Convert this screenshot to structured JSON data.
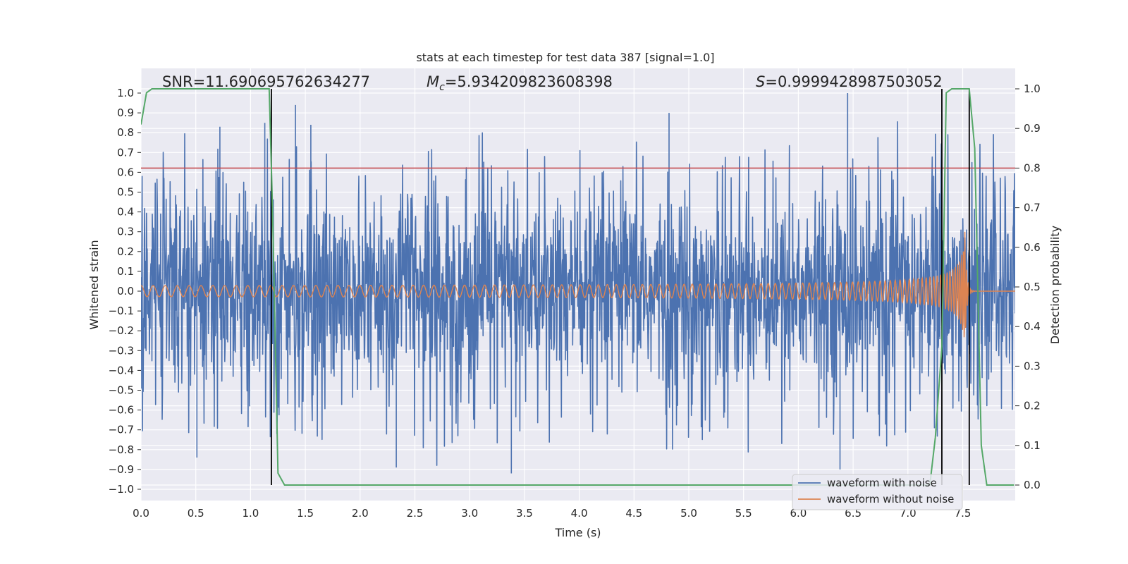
{
  "chart_data": {
    "type": "line",
    "title": "stats at each timestep for test data 387 [signal=1.0]",
    "xlabel": "Time (s)",
    "ylabel": "Whitened strain",
    "y2label": "Detection probability",
    "xlim": [
      0.0,
      8.0
    ],
    "ylim": [
      -1.05,
      1.05
    ],
    "y2lim": [
      -0.05,
      1.05
    ],
    "x_ticks": [
      "0.0",
      "0.5",
      "1.0",
      "1.5",
      "2.0",
      "2.5",
      "3.0",
      "3.5",
      "4.0",
      "4.5",
      "5.0",
      "5.5",
      "6.0",
      "6.5",
      "7.0",
      "7.5"
    ],
    "y_ticks": [
      "1.0",
      "0.9",
      "0.8",
      "0.7",
      "0.6",
      "0.5",
      "0.4",
      "0.3",
      "0.2",
      "0.1",
      "0.0",
      "−0.1",
      "−0.2",
      "−0.3",
      "−0.4",
      "−0.5",
      "−0.6",
      "−0.7",
      "−0.8",
      "−0.9",
      "−1.0"
    ],
    "y2_ticks": [
      "1.0",
      "0.9",
      "0.8",
      "0.7",
      "0.6",
      "0.5",
      "0.4",
      "0.3",
      "0.2",
      "0.1",
      "0.0"
    ],
    "annotations": {
      "snr": "SNR=11.690695762634277",
      "mc_symbol": "M",
      "mc_sub": "c",
      "mc_value": "=5.934209823608398",
      "s_symbol": "S",
      "s_value": "=0.9999428987503052"
    },
    "threshold": {
      "value": 0.8,
      "axis": "y2",
      "color": "#c44e52"
    },
    "vertical_markers": [
      1.19,
      7.31,
      7.56
    ],
    "series": [
      {
        "name": "waveform with noise",
        "color": "#4c72b0",
        "axis": "y",
        "description": "whitened strain, noise dominated, roughly -0.9 to 1.0",
        "peaks": [
          {
            "x": 0.72,
            "y": 0.83
          },
          {
            "x": 1.13,
            "y": 0.85
          },
          {
            "x": 1.41,
            "y": 0.94
          },
          {
            "x": 1.55,
            "y": 0.84
          },
          {
            "x": 4.82,
            "y": 0.9
          },
          {
            "x": 6.45,
            "y": 1.0
          },
          {
            "x": 1.47,
            "y": -0.72
          },
          {
            "x": 3.38,
            "y": -0.92
          },
          {
            "x": 2.33,
            "y": -0.89
          },
          {
            "x": 0.51,
            "y": -0.84
          },
          {
            "x": 6.38,
            "y": -0.9
          }
        ]
      },
      {
        "name": "waveform without noise",
        "color": "#dd8452",
        "axis": "y",
        "description": "inspiral chirp growing from 0.02 to 0.3 amplitude, merging at 7.52 s",
        "chirp": {
          "start": 0.0,
          "merger": 7.52,
          "amp_start": 0.02,
          "amp_end": 0.3
        }
      },
      {
        "name": "Detection probability",
        "color": "#55a868",
        "axis": "y2",
        "x": [
          0.0,
          0.05,
          0.1,
          1.17,
          1.2,
          1.25,
          1.31,
          7.2,
          7.25,
          7.31,
          7.35,
          7.4,
          7.56,
          7.61,
          7.67,
          7.72,
          7.97
        ],
        "y": [
          0.91,
          0.99,
          1.0,
          1.0,
          0.7,
          0.03,
          0.0,
          0.0,
          0.12,
          0.35,
          0.99,
          1.0,
          1.0,
          0.85,
          0.1,
          0.0,
          0.0
        ]
      }
    ],
    "legend": {
      "position": "lower-right",
      "entries": [
        {
          "label": "waveform with noise",
          "color": "#4c72b0"
        },
        {
          "label": "waveform without noise",
          "color": "#dd8452"
        }
      ]
    }
  }
}
